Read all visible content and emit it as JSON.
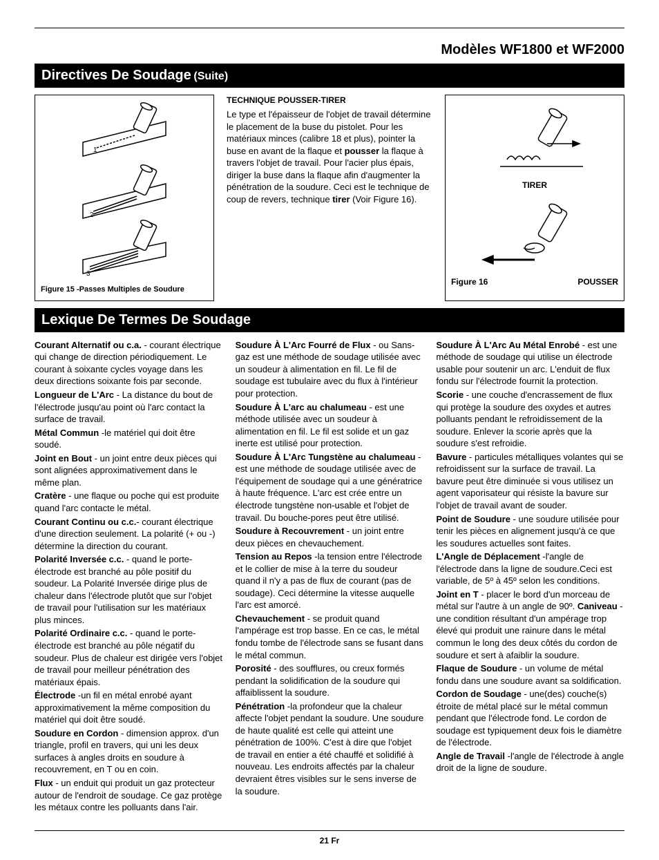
{
  "page_header": "Modèles WF1800 et WF2000",
  "bar1_main": "Directives De Soudage",
  "bar1_sub": "(Suite)",
  "fig15_caption": "Figure 15 -Passes Multiples de Soudure",
  "technique": {
    "heading": "TECHNIQUE POUSSER-TIRER",
    "p1a": "Le type et l'épaisseur de l'objet de travail détermine le placement de la buse du pistolet. Pour les matériaux minces (calibre 18 et plus), pointer la buse en avant de la flaque et ",
    "p1b_bold": "pousser",
    "p1c": " la flaque à travers l'objet de travail. Pour l'acier plus épais, diriger la buse dans la flaque afin d'augmenter la pénétration de la soudure. Ceci est le technique de coup de revers, technique ",
    "p1d_bold": "tirer",
    "p1e": " (Voir Figure 16)."
  },
  "fig16": {
    "tirer": "TIRER",
    "fig_label": "Figure 16",
    "pousser": "POUSSER"
  },
  "bar2": "Lexique De Termes De Soudage",
  "entries": [
    {
      "term": "Courant Alternatif ou c.a.",
      "def": " - courant électrique qui change de direction périodiquement. Le courant à soixante cycles voyage dans les deux directions soixante fois par seconde."
    },
    {
      "term": "Longueur de L'Arc",
      "def": " - La distance du bout de l'électrode jusqu'au point où l'arc contact la surface de travail."
    },
    {
      "term": "Métal Commun",
      "def": " -le matériel qui doit être soudé."
    },
    {
      "term": "Joint en Bout",
      "def": " - un joint entre deux pièces qui sont alignées approximativement dans le même plan."
    },
    {
      "term": "Cratère",
      "def": " - une flaque ou poche qui est produite quand l'arc contacte le métal."
    },
    {
      "term": "Courant Continu ou c.c.",
      "def": "- courant électrique d'une direction seulement. La polarité (+ ou -) détermine la direction du courant."
    },
    {
      "term": "Polarité Inversée c.c.",
      "def": " - quand le porte-électrode est branché au pôle positif du soudeur. La Polarité Inversée dirige plus de chaleur dans l'électrode plutôt que sur l'objet de travail pour l'utilisation sur les matériaux plus minces."
    },
    {
      "term": "Polarité Ordinaire c.c.",
      "def": " - quand le porte-électrode est branché au pôle négatif du soudeur. Plus de chaleur est dirigée vers l'objet de travail pour meilleur pénétration des matériaux épais."
    },
    {
      "term": "Électrode",
      "def": " -un fil en métal enrobé ayant approximativement la même composition du matériel qui doit être soudé."
    },
    {
      "term": "Soudure en Cordon",
      "def": " - dimension approx. d'un triangle, profil en travers, qui uni les deux surfaces à angles droits en soudure à recouvrement, en T ou en coin."
    },
    {
      "term": "Flux",
      "def": " - un enduit qui produit un gaz protecteur autour de l'endroit de soudage. Ce gaz protège les métaux contre les polluants dans l'air."
    },
    {
      "term": "Soudure À L'Arc Fourré de Flux",
      "def": " - ou Sans-gaz est une méthode de soudage utilisée avec un soudeur à alimentation en fil. Le fil de soudage est tubulaire avec du flux à l'intérieur pour protection."
    },
    {
      "term": "Soudure À L'arc au chalumeau",
      "def": " - est une méthode utilisée avec un soudeur à alimentation en fil. Le fil est solide et un gaz inerte est utilisé pour protection."
    },
    {
      "term": "Soudure À L'Arc Tungstène au chalumeau",
      "def": " - est une méthode de soudage utilisée avec de l'équipement de soudage qui a une génératrice à haute fréquence. L'arc est crée entre un électrode tungstène non-usable et l'objet de travail. Du bouche-pores peut être utilisé."
    },
    {
      "term": "Soudure à Recouvrement",
      "def": " - un joint entre deux pièces en chevauchement."
    },
    {
      "term": "Tension au Repos",
      "def": " -la tension entre l'électrode et le collier de mise à la terre du soudeur quand il n'y a pas de flux de courant (pas de soudage). Ceci détermine la vitesse auquelle l'arc est amorcé."
    },
    {
      "term": "Chevauchement",
      "def": " - se produit quand l'ampérage est trop basse. En ce cas, le métal fondu tombe de l'électrode sans se fusant dans le métal commun."
    },
    {
      "term": "Porosité",
      "def": " - des soufflures, ou creux formés pendant la solidification de la soudure qui affaiblissent la soudure."
    },
    {
      "term": "Pénétration",
      "def": " -la profondeur que la chaleur affecte l'objet pendant la soudure. Une soudure de haute qualité est celle qui atteint une pénétration de 100%. C'est à dire que l'objet de travail en entier a été chauffé et solidifié à nouveau. Les endroits affectés par la chaleur devraient êtres visibles sur le sens inverse de la soudure."
    },
    {
      "term": "Soudure À L'Arc Au Métal Enrobé",
      "def": " - est une méthode de soudage qui utilise un électrode usable pour soutenir un arc. L'enduit de flux fondu sur l'électrode fournit la protection."
    },
    {
      "term": "Scorie",
      "def": " - une couche d'encrassement de flux qui protège la soudure des oxydes et autres polluants pendant le refroidissement de la soudure. Enlever la scorie après que la soudure s'est refroidie."
    },
    {
      "term": "Bavure",
      "def": " - particules métalliques volantes qui se refroidissent sur la surface de travail. La bavure peut être diminuée si vous utilisez un agent vaporisateur qui résiste la bavure sur l'objet de travail avant de souder."
    },
    {
      "term": "Point de Soudure",
      "def": " - une soudure utilisée pour tenir les pièces en alignement jusqu'à ce que les soudures actuelles sont faites."
    },
    {
      "term": "L'Angle de Déplacement",
      "def": " -l'angle de l'électrode dans la ligne de soudure.Ceci est variable, de 5º à 45º selon les conditions."
    },
    {
      "term": "Joint en T",
      "def": " - placer le bord d'un morceau de métal sur l'autre à un angle de 90º. ",
      "term2": "Caniveau",
      "def2": " - une condition résultant d'un ampérage trop élevé qui produit une rainure dans le métal commun le long des deux côtés du cordon de soudure et sert à afaiblir la soudure."
    },
    {
      "term": "Flaque de Soudure",
      "def": " - un volume de métal fondu dans une soudure avant sa soldification."
    },
    {
      "term": "Cordon de Soudage",
      "def": " - une(des) couche(s) étroite de métal placé sur le métal commun pendant que l'électrode fond. Le cordon de soudage est typiquement deux fois le diamètre de l'électrode."
    },
    {
      "term": "Angle de Travail",
      "def": " -l'angle de l'électrode à angle droit de la ligne de soudure."
    }
  ],
  "footer": "21 Fr"
}
